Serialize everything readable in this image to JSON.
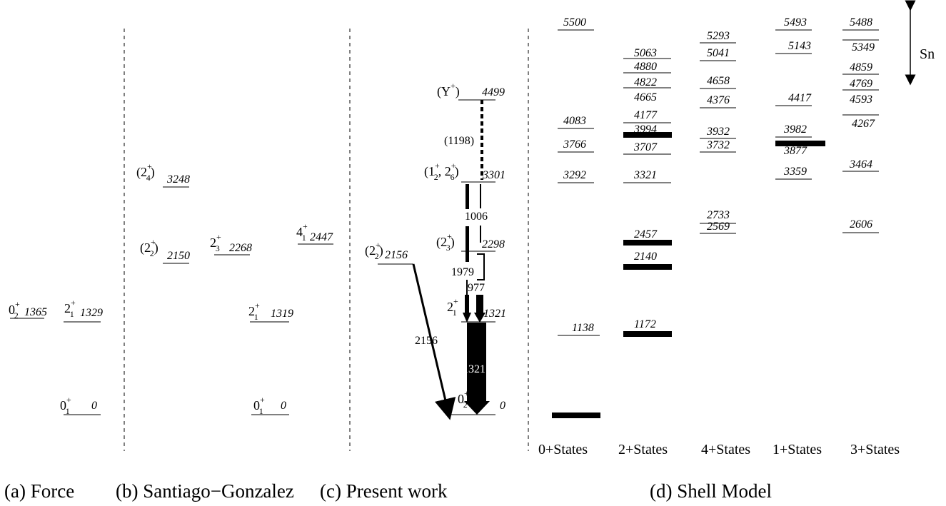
{
  "captions": {
    "a": "(a) Force",
    "b": "(b) Santiago−Gonzalez",
    "c": "(c) Present work",
    "d": "(d) Shell Model"
  },
  "sn_label": "Sn",
  "force": {
    "levels": [
      {
        "id": "force-0-1",
        "base": "0",
        "sub": "1",
        "sup": "+",
        "energy": "0"
      },
      {
        "id": "force-2-1",
        "base": "2",
        "sub": "1",
        "sup": "+",
        "energy": "1329"
      },
      {
        "id": "force-0-2",
        "base": "0",
        "sub": "2",
        "sup": "+",
        "energy": "1365"
      }
    ]
  },
  "santiago": {
    "levels": [
      {
        "id": "sg-2-4",
        "pre": "(",
        "base": "2",
        "sub": "4",
        "sup": "+",
        "post": ")",
        "energy": "3248"
      },
      {
        "id": "sg-2-2",
        "pre": "(",
        "base": "2",
        "sub": "2",
        "sup": "+",
        "post": ")",
        "energy": "2150"
      },
      {
        "id": "sg-2-3",
        "base": "2",
        "sub": "3",
        "sup": "+",
        "energy": "2268"
      },
      {
        "id": "sg-4-1",
        "base": "4",
        "sub": "1",
        "sup": "+",
        "energy": "2447"
      },
      {
        "id": "sg-2-1",
        "base": "2",
        "sub": "1",
        "sup": "+",
        "energy": "1319"
      },
      {
        "id": "sg-0-1",
        "base": "0",
        "sub": "1",
        "sup": "+",
        "energy": "0"
      }
    ]
  },
  "present": {
    "levels": [
      {
        "id": "pw-y",
        "spin": "(Y+)",
        "energy": "4499"
      },
      {
        "id": "pw-3301",
        "spin": "(1+2, 2+6)",
        "energy": "3301"
      },
      {
        "id": "pw-2298",
        "spin": "(2+3)",
        "energy": "2298"
      },
      {
        "id": "pw-2156",
        "spin": "(2+2)",
        "energy": "2156"
      },
      {
        "id": "pw-1321",
        "spin": "2+1",
        "energy": "1321"
      },
      {
        "id": "pw-0",
        "spin": "0+2",
        "energy": "0"
      }
    ],
    "gammas": [
      {
        "id": "g-1198",
        "energy": "(1198)"
      },
      {
        "id": "g-1006",
        "energy": "1006"
      },
      {
        "id": "g-1979",
        "energy": "1979"
      },
      {
        "id": "g-977",
        "energy": "977"
      },
      {
        "id": "g-2156",
        "energy": "2156"
      },
      {
        "id": "g-1321",
        "energy": "1321"
      }
    ]
  },
  "shell_model": {
    "columns": [
      {
        "name": "0+States",
        "energies": [
          "5500",
          "4083",
          "3766",
          "3292",
          "1138"
        ]
      },
      {
        "name": "2+States",
        "energies": [
          "5063",
          "4880",
          "4822",
          "4665",
          "4177",
          "3994",
          "3707",
          "3321",
          "2457",
          "2140",
          "1172"
        ]
      },
      {
        "name": "4+States",
        "energies": [
          "5293",
          "5041",
          "4658",
          "4376",
          "3932",
          "3732",
          "2733",
          "2569"
        ]
      },
      {
        "name": "1+States",
        "energies": [
          "5493",
          "5143",
          "4417",
          "3982",
          "3877",
          "3359"
        ]
      },
      {
        "name": "3+States",
        "energies": [
          "5488",
          "5349",
          "4859",
          "4769",
          "4593",
          "4267",
          "3464",
          "2606"
        ]
      }
    ]
  }
}
